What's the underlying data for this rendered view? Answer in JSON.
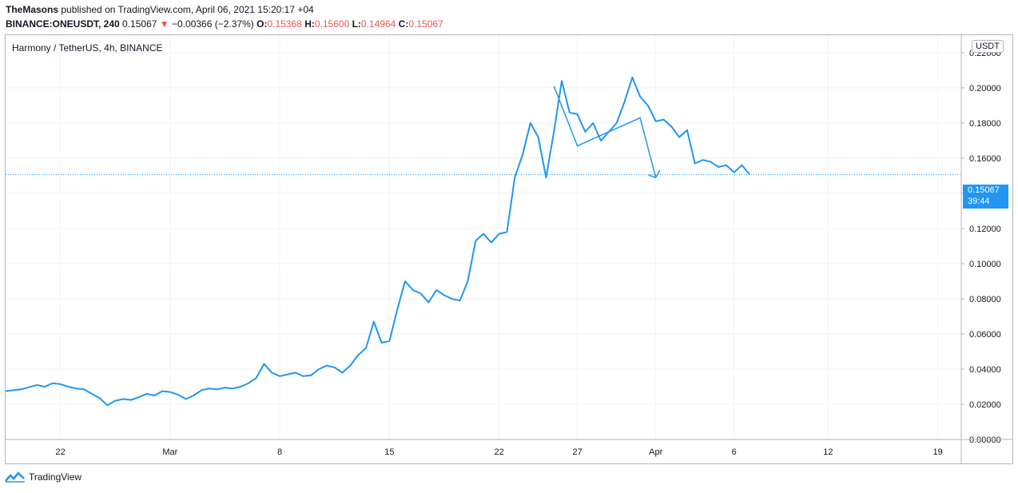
{
  "header": {
    "author": "TheMasons",
    "published_text": "published on TradingView.com, April 06, 2021 15:20:17 +04",
    "symbol_line": "BINANCE:ONEUSDT, 240",
    "last": "0.15067",
    "change": "−0.00366 (−2.37%)",
    "o_label": "O:",
    "o_value": "0.15368",
    "h_label": "H:",
    "h_value": "0.15600",
    "l_label": "L:",
    "l_value": "0.14964",
    "c_label": "C:",
    "c_value": "0.15067",
    "down_arrow": "▼"
  },
  "legend_text": "Harmony / TetherUS, 4h, BINANCE",
  "currency_badge": "USDT",
  "price_tag": {
    "price": "0.15067",
    "countdown": "39:44"
  },
  "footer": {
    "brand": "TradingView"
  },
  "colors": {
    "line": "#2196f3",
    "down": "#ef5350",
    "grid": "#f0f3fa"
  },
  "chart_data": {
    "type": "line",
    "series": [
      {
        "x_days": [
          0.0,
          1.0,
          2.0,
          2.5,
          3.0,
          3.5,
          4.0,
          4.5,
          5.0,
          5.5,
          6.0,
          6.5,
          7.0,
          7.5,
          8.0,
          8.5,
          9.0,
          9.5,
          10.0,
          10.5,
          11.0,
          11.5,
          12.0,
          12.5,
          13.0,
          13.5,
          14.0,
          14.5,
          15.0,
          15.5,
          16.0,
          16.5,
          17.0,
          17.5,
          18.0,
          18.5,
          19.0,
          19.5,
          20.0,
          20.5,
          21.0,
          21.5,
          22.0,
          22.5,
          23.0,
          23.5,
          24.0,
          24.5,
          25.0,
          25.5,
          26.0,
          26.5,
          27.0,
          27.5,
          28.0,
          28.5,
          29.0,
          29.5,
          30.0,
          30.5,
          31.0,
          31.5,
          32.0,
          32.5,
          33.0,
          33.5,
          34.0,
          34.5,
          35.0,
          35.5,
          36.0,
          36.5,
          37.0,
          37.5,
          38.0,
          38.5,
          39.0,
          39.5,
          40.0,
          40.5,
          41.0,
          41.5,
          42.0,
          42.5,
          43.0,
          43.5,
          44.0,
          44.5,
          45.0,
          45.5,
          46.0,
          46.5,
          47.0,
          47.5
        ],
        "values": [
          0.0275,
          0.0285,
          0.031,
          0.03,
          0.032,
          0.0315,
          0.03,
          0.029,
          0.0285,
          0.026,
          0.0235,
          0.0195,
          0.022,
          0.023,
          0.0225,
          0.024,
          0.026,
          0.025,
          0.0275,
          0.027,
          0.0255,
          0.023,
          0.025,
          0.028,
          0.029,
          0.0285,
          0.0295,
          0.029,
          0.03,
          0.032,
          0.035,
          0.043,
          0.038,
          0.036,
          0.037,
          0.038,
          0.036,
          0.0365,
          0.04,
          0.042,
          0.041,
          0.038,
          0.042,
          0.048,
          0.052,
          0.067,
          0.055,
          0.056,
          0.074,
          0.09,
          0.085,
          0.083,
          0.078,
          0.085,
          0.082,
          0.08,
          0.079,
          0.09,
          0.113,
          0.117,
          0.112,
          0.117,
          0.118,
          0.149,
          0.162,
          0.18,
          0.172,
          0.149,
          0.175,
          0.204,
          0.186,
          0.185,
          0.175,
          0.18,
          0.17,
          0.175,
          0.18,
          0.192,
          0.206,
          0.195,
          0.19,
          0.181,
          0.182,
          0.178,
          0.172,
          0.176,
          0.157,
          0.159,
          0.158,
          0.155,
          0.156,
          0.152,
          0.156,
          0.1507
        ]
      }
    ],
    "ylim": [
      0.0,
      0.23
    ],
    "y_ticks": [
      "0.00000",
      "0.02000",
      "0.04000",
      "0.06000",
      "0.08000",
      "0.10000",
      "0.12000",
      "0.14000",
      "0.16000",
      "0.18000",
      "0.20000",
      "0.22000"
    ],
    "x_ticks": [
      {
        "label": "22",
        "day": 3.5
      },
      {
        "label": "Mar",
        "day": 10.5
      },
      {
        "label": "8",
        "day": 17.5
      },
      {
        "label": "15",
        "day": 24.5
      },
      {
        "label": "22",
        "day": 31.5
      },
      {
        "label": "27",
        "day": 36.5
      },
      {
        "label": "Apr",
        "day": 41.5
      },
      {
        "label": "6",
        "day": 46.5
      },
      {
        "label": "12",
        "day": 52.5
      },
      {
        "label": "19",
        "day": 59.5
      }
    ],
    "xlim": [
      0.0,
      61.0
    ],
    "current_price": 0.15067,
    "drawing": [
      {
        "day": 35.0,
        "value": 0.201
      },
      {
        "day": 36.5,
        "value": 0.167
      },
      {
        "day": 40.5,
        "value": 0.183
      },
      {
        "day": 41.5,
        "value": 0.149
      }
    ],
    "grid": true
  }
}
